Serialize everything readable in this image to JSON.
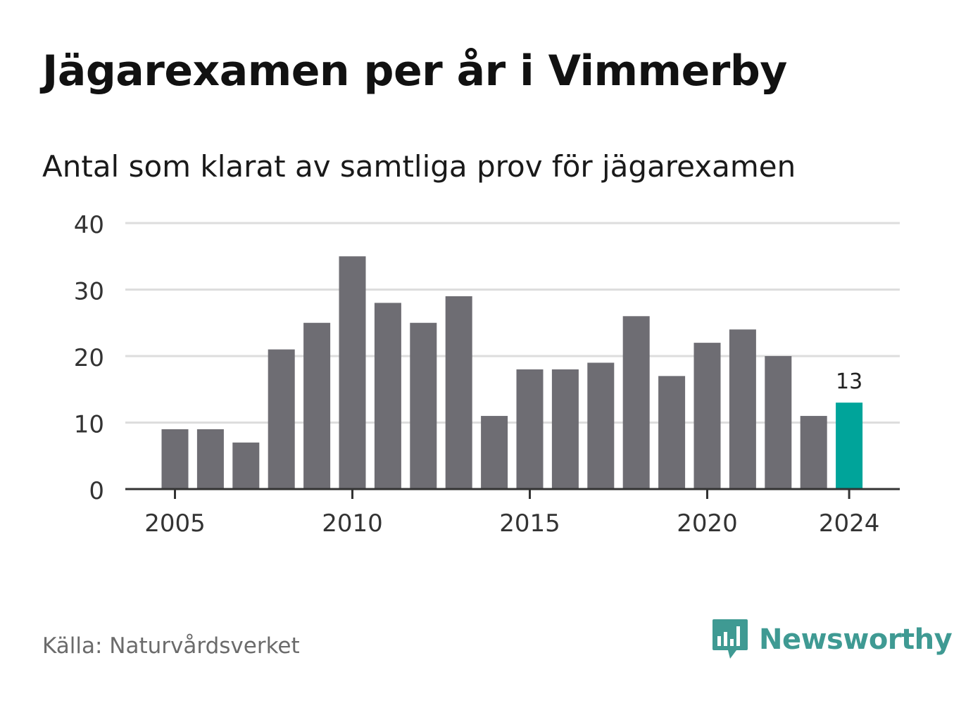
{
  "title": "Jägarexamen per år i Vimmerby",
  "subtitle": "Antal som klarat av samtliga prov för jägarexamen",
  "source": "Källa: Naturvårdsverket",
  "brand": {
    "name": "Newsworthy",
    "icon": "newsworthy-logo-icon",
    "color": "#3f9a93"
  },
  "colors": {
    "bar": "#6e6d73",
    "highlight": "#00a49a",
    "grid": "#dddddd",
    "axis": "#333333"
  },
  "chart_data": {
    "type": "bar",
    "x": [
      2005,
      2006,
      2007,
      2008,
      2009,
      2010,
      2011,
      2012,
      2013,
      2014,
      2015,
      2016,
      2017,
      2018,
      2019,
      2020,
      2021,
      2022,
      2023,
      2024
    ],
    "values": [
      9,
      9,
      7,
      21,
      25,
      35,
      28,
      25,
      29,
      11,
      18,
      18,
      19,
      26,
      17,
      22,
      24,
      20,
      11,
      13
    ],
    "ylim": [
      0,
      40
    ],
    "yticks": [
      0,
      10,
      20,
      30,
      40
    ],
    "xticks": [
      2005,
      2010,
      2015,
      2020,
      2024
    ],
    "grid": true,
    "highlight": {
      "x": 2024,
      "label": "13"
    }
  }
}
